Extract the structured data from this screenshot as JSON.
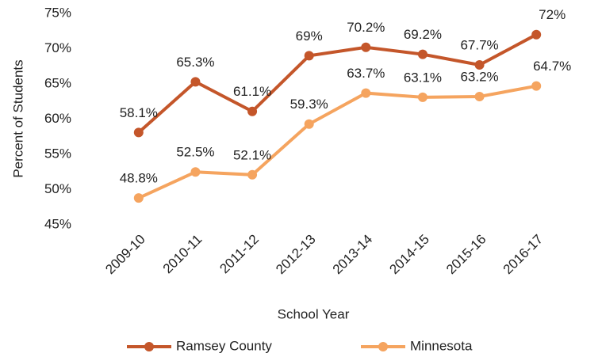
{
  "chart_data": {
    "type": "line",
    "x_label": "School Year",
    "y_label": "Percent of Students",
    "categories": [
      "2009-10",
      "2010-11",
      "2011-12",
      "2012-13",
      "2013-14",
      "2014-15",
      "2015-16",
      "2016-17"
    ],
    "series": [
      {
        "name": "Ramsey County",
        "color": "#c4562a",
        "values": [
          58.1,
          65.3,
          61.1,
          69,
          70.2,
          69.2,
          67.7,
          72
        ],
        "value_labels": [
          "58.1%",
          "65.3%",
          "61.1%",
          "69%",
          "70.2%",
          "69.2%",
          "67.7%",
          "72%"
        ]
      },
      {
        "name": "Minnesota",
        "color": "#f5a45f",
        "values": [
          48.8,
          52.5,
          52.1,
          59.3,
          63.7,
          63.1,
          63.2,
          64.7
        ],
        "value_labels": [
          "48.8%",
          "52.5%",
          "52.1%",
          "59.3%",
          "63.7%",
          "63.1%",
          "63.2%",
          "64.7%"
        ]
      }
    ],
    "ylim": [
      45,
      75
    ],
    "yticks": [
      {
        "value": 45,
        "label": "45%"
      },
      {
        "value": 50,
        "label": "50%"
      },
      {
        "value": 55,
        "label": "55%"
      },
      {
        "value": 60,
        "label": "60%"
      },
      {
        "value": 65,
        "label": "65%"
      },
      {
        "value": 70,
        "label": "70%"
      },
      {
        "value": 75,
        "label": "75%"
      }
    ],
    "grid": false,
    "legend": "bottom"
  }
}
